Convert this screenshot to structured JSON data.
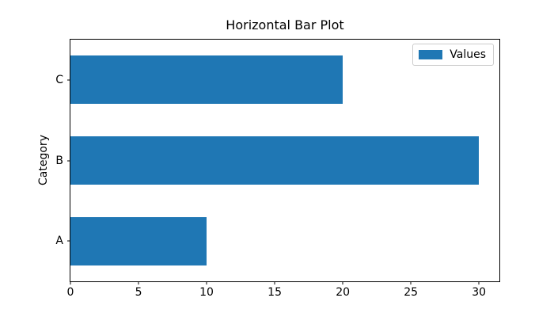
{
  "figure": {
    "title": "Horizontal Bar Plot",
    "ylabel": "Category",
    "legend_label": "Values"
  },
  "chart_data": {
    "type": "bar",
    "orientation": "horizontal",
    "title": "Horizontal Bar Plot",
    "xlabel": "",
    "ylabel": "Category",
    "categories": [
      "A",
      "B",
      "C"
    ],
    "series": [
      {
        "name": "Values",
        "values": [
          10,
          30,
          20
        ]
      }
    ],
    "xlim": [
      0,
      31.5
    ],
    "xticks": [
      0,
      5,
      10,
      15,
      20,
      25,
      30
    ],
    "bar_height_frac": 0.6,
    "bar_color": "#1f77b4",
    "grid": false,
    "legend": {
      "position": "upper right",
      "entries": [
        "Values"
      ]
    }
  }
}
